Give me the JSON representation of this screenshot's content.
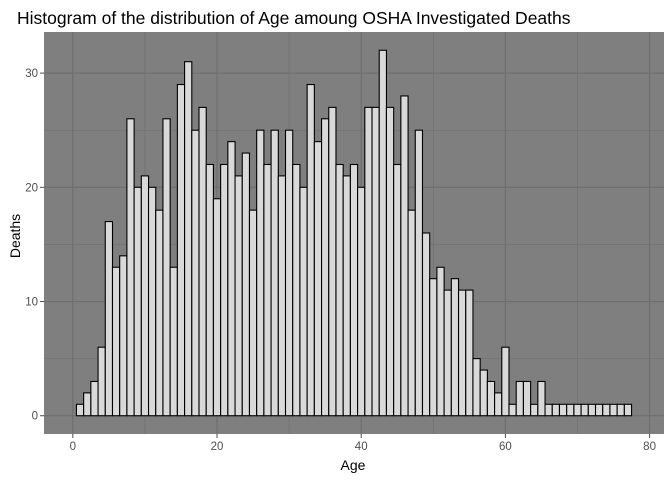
{
  "chart_data": {
    "type": "bar",
    "title": "Histogram of the distribution of Age amoung OSHA Investigated Deaths",
    "xlabel": "Age",
    "ylabel": "Deaths",
    "xlim": [
      -4,
      82
    ],
    "ylim": [
      -1.6,
      33.6
    ],
    "x_ticks": [
      0,
      20,
      40,
      60,
      80
    ],
    "y_ticks": [
      0,
      10,
      20,
      30
    ],
    "x": [
      1,
      2,
      3,
      4,
      5,
      6,
      7,
      8,
      9,
      10,
      11,
      12,
      13,
      14,
      15,
      16,
      17,
      18,
      19,
      20,
      21,
      22,
      23,
      24,
      25,
      26,
      27,
      28,
      29,
      30,
      31,
      32,
      33,
      34,
      35,
      36,
      37,
      38,
      39,
      40,
      41,
      42,
      43,
      44,
      45,
      46,
      47,
      48,
      49,
      50,
      51,
      52,
      53,
      54,
      55,
      56,
      57,
      58,
      59,
      60,
      61,
      62,
      63,
      64,
      65,
      66,
      67,
      68,
      69,
      70,
      71,
      72,
      73,
      74,
      75,
      76,
      77
    ],
    "values": [
      1,
      2,
      3,
      6,
      17,
      13,
      14,
      26,
      20,
      21,
      20,
      18,
      26,
      13,
      29,
      31,
      25,
      27,
      22,
      19,
      22,
      24,
      21,
      23,
      18,
      25,
      22,
      25,
      21,
      25,
      22,
      20,
      29,
      24,
      26,
      27,
      22,
      21,
      22,
      20,
      27,
      27,
      32,
      27,
      22,
      28,
      18,
      25,
      16,
      12,
      13,
      11,
      12,
      11,
      11,
      5,
      4,
      3,
      2,
      6,
      1,
      3,
      3,
      1,
      3,
      1,
      1,
      1,
      1,
      1,
      1,
      1,
      1,
      1,
      1,
      1,
      1
    ],
    "grid": true,
    "bar_fill": "#d9d9d9",
    "bar_outline": "#000000",
    "panel_background": "#7f7f7f",
    "grid_color": "#6e6e6e",
    "legend": "none"
  }
}
